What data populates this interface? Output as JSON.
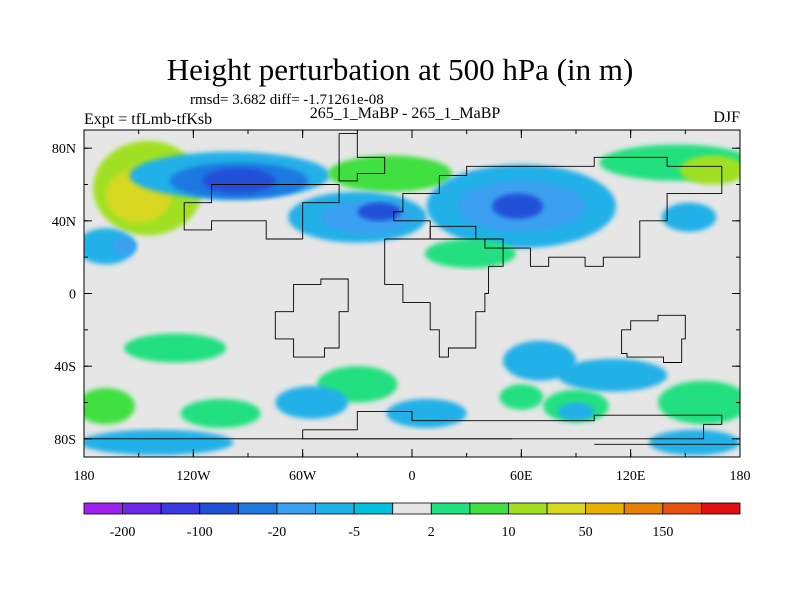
{
  "header": {
    "title": "Height perturbation at 500 hPa (in m)",
    "stats": "rmsd= 3.682 diff= -1.71261e-08",
    "expt": "Expt = tfLmb-tfKsb",
    "run": "265_1_MaBP - 265_1_MaBP",
    "season": "DJF"
  },
  "chart_data": {
    "type": "heatmap",
    "title": "Height perturbation at 500 hPa (in m)",
    "xlabel": "",
    "ylabel": "",
    "xlim": [
      -180,
      180
    ],
    "ylim": [
      -90,
      90
    ],
    "x_ticks": [
      {
        "value": -180,
        "label": "180"
      },
      {
        "value": -120,
        "label": "120W"
      },
      {
        "value": -60,
        "label": "60W"
      },
      {
        "value": 0,
        "label": "0"
      },
      {
        "value": 60,
        "label": "60E"
      },
      {
        "value": 120,
        "label": "120E"
      },
      {
        "value": 180,
        "label": "180"
      }
    ],
    "y_ticks": [
      {
        "value": 80,
        "label": "80N"
      },
      {
        "value": 40,
        "label": "40N"
      },
      {
        "value": 0,
        "label": "0"
      },
      {
        "value": -40,
        "label": "40S"
      },
      {
        "value": -80,
        "label": "80S"
      }
    ],
    "background_color": "#e6e6e6",
    "colorbar": {
      "levels": [
        -200,
        -150,
        -100,
        -50,
        -20,
        -10,
        -5,
        -2,
        2,
        5,
        10,
        20,
        50,
        100,
        150,
        200
      ],
      "labels": [
        "-200",
        "-100",
        "-20",
        "-5",
        "2",
        "10",
        "50",
        "150"
      ],
      "colors": [
        "#a020f0",
        "#6a2ae8",
        "#3a3ae0",
        "#2050d8",
        "#1f78e0",
        "#3aa0f0",
        "#20b0e8",
        "#00c0e0",
        "#e6e6e6",
        "#20e080",
        "#40e040",
        "#a0e020",
        "#d8d820",
        "#e8b000",
        "#e88000",
        "#e85010",
        "#e01010"
      ]
    },
    "anomalies": [
      {
        "lon": -145,
        "lat": 58,
        "rx": 30,
        "ry": 26,
        "level": 11
      },
      {
        "lon": -150,
        "lat": 54,
        "rx": 18,
        "ry": 15,
        "level": 12
      },
      {
        "lon": -100,
        "lat": 65,
        "rx": 55,
        "ry": 13,
        "level": 6
      },
      {
        "lon": -95,
        "lat": 62,
        "rx": 38,
        "ry": 10,
        "level": 4
      },
      {
        "lon": -95,
        "lat": 62,
        "rx": 20,
        "ry": 7,
        "level": 3
      },
      {
        "lon": -12,
        "lat": 66,
        "rx": 34,
        "ry": 10,
        "level": 10
      },
      {
        "lon": -30,
        "lat": 42,
        "rx": 38,
        "ry": 14,
        "level": 6
      },
      {
        "lon": -25,
        "lat": 42,
        "rx": 25,
        "ry": 9,
        "level": 5
      },
      {
        "lon": -18,
        "lat": 45,
        "rx": 12,
        "ry": 5,
        "level": 3
      },
      {
        "lon": 60,
        "lat": 48,
        "rx": 52,
        "ry": 23,
        "level": 6
      },
      {
        "lon": 60,
        "lat": 48,
        "rx": 35,
        "ry": 14,
        "level": 5
      },
      {
        "lon": 58,
        "lat": 48,
        "rx": 14,
        "ry": 7,
        "level": 3
      },
      {
        "lon": 145,
        "lat": 72,
        "rx": 42,
        "ry": 10,
        "level": 9
      },
      {
        "lon": 165,
        "lat": 68,
        "rx": 18,
        "ry": 8,
        "level": 11
      },
      {
        "lon": 152,
        "lat": 42,
        "rx": 15,
        "ry": 8,
        "level": 6
      },
      {
        "lon": 32,
        "lat": 22,
        "rx": 25,
        "ry": 8,
        "level": 9
      },
      {
        "lon": -168,
        "lat": 26,
        "rx": 16,
        "ry": 10,
        "level": 6
      },
      {
        "lon": -158,
        "lat": 26,
        "rx": 7,
        "ry": 5,
        "level": 5
      },
      {
        "lon": -130,
        "lat": -30,
        "rx": 28,
        "ry": 8,
        "level": 9
      },
      {
        "lon": 70,
        "lat": -37,
        "rx": 20,
        "ry": 11,
        "level": 6
      },
      {
        "lon": 110,
        "lat": -45,
        "rx": 30,
        "ry": 9,
        "level": 6
      },
      {
        "lon": -30,
        "lat": -50,
        "rx": 22,
        "ry": 10,
        "level": 9
      },
      {
        "lon": -55,
        "lat": -60,
        "rx": 20,
        "ry": 9,
        "level": 6
      },
      {
        "lon": -105,
        "lat": -66,
        "rx": 22,
        "ry": 8,
        "level": 9
      },
      {
        "lon": 8,
        "lat": -66,
        "rx": 22,
        "ry": 8,
        "level": 6
      },
      {
        "lon": 160,
        "lat": -60,
        "rx": 25,
        "ry": 12,
        "level": 9
      },
      {
        "lon": -168,
        "lat": -62,
        "rx": 16,
        "ry": 10,
        "level": 10
      },
      {
        "lon": 90,
        "lat": -62,
        "rx": 18,
        "ry": 9,
        "level": 9
      },
      {
        "lon": 90,
        "lat": -65,
        "rx": 10,
        "ry": 5,
        "level": 6
      },
      {
        "lon": 60,
        "lat": -57,
        "rx": 12,
        "ry": 7,
        "level": 9
      },
      {
        "lon": -140,
        "lat": -82,
        "rx": 42,
        "ry": 7,
        "level": 6
      },
      {
        "lon": 155,
        "lat": -82,
        "rx": 25,
        "ry": 7,
        "level": 6
      }
    ],
    "outlines": [
      [
        [
          -40,
          88
        ],
        [
          -30,
          75
        ],
        [
          -15,
          66
        ],
        [
          -30,
          62
        ],
        [
          -40,
          70
        ],
        [
          -40,
          88
        ]
      ],
      [
        [
          -60,
          30
        ],
        [
          -80,
          40
        ],
        [
          -110,
          35
        ],
        [
          -125,
          40
        ],
        [
          -125,
          50
        ],
        [
          -110,
          60
        ],
        [
          -60,
          60
        ],
        [
          -40,
          50
        ],
        [
          -60,
          30
        ]
      ],
      [
        [
          -35,
          -10
        ],
        [
          -40,
          -30
        ],
        [
          -48,
          -35
        ],
        [
          -65,
          -25
        ],
        [
          -75,
          -10
        ],
        [
          -65,
          5
        ],
        [
          -50,
          8
        ],
        [
          -35,
          -10
        ]
      ],
      [
        [
          10,
          40
        ],
        [
          -10,
          40
        ],
        [
          -10,
          45
        ],
        [
          -5,
          55
        ],
        [
          15,
          65
        ],
        [
          30,
          70
        ],
        [
          60,
          70
        ],
        [
          100,
          75
        ],
        [
          140,
          70
        ],
        [
          170,
          65
        ],
        [
          170,
          55
        ],
        [
          140,
          40
        ],
        [
          125,
          20
        ],
        [
          105,
          15
        ],
        [
          95,
          20
        ],
        [
          75,
          15
        ],
        [
          65,
          25
        ],
        [
          40,
          30
        ],
        [
          30,
          30
        ],
        [
          10,
          40
        ]
      ],
      [
        [
          -15,
          30
        ],
        [
          10,
          37
        ],
        [
          35,
          30
        ],
        [
          50,
          15
        ],
        [
          42,
          0
        ],
        [
          40,
          -10
        ],
        [
          35,
          -30
        ],
        [
          20,
          -35
        ],
        [
          15,
          -20
        ],
        [
          10,
          -5
        ],
        [
          -5,
          5
        ],
        [
          -15,
          15
        ],
        [
          -15,
          30
        ]
      ],
      [
        [
          115,
          -20
        ],
        [
          120,
          -15
        ],
        [
          135,
          -12
        ],
        [
          150,
          -25
        ],
        [
          148,
          -38
        ],
        [
          138,
          -35
        ],
        [
          118,
          -33
        ],
        [
          115,
          -20
        ]
      ],
      [
        [
          -60,
          -75
        ],
        [
          -30,
          -65
        ],
        [
          0,
          -70
        ],
        [
          40,
          -70
        ],
        [
          60,
          -70
        ],
        [
          100,
          -67
        ],
        [
          140,
          -67
        ],
        [
          170,
          -72
        ],
        [
          160,
          -80
        ],
        [
          -60,
          -80
        ],
        [
          -60,
          -75
        ]
      ]
    ],
    "ref_lines": [
      {
        "lat": -80,
        "lon_start": -180,
        "lon_end": 55
      },
      {
        "lat": -83,
        "lon_start": 100,
        "lon_end": 180
      }
    ]
  }
}
